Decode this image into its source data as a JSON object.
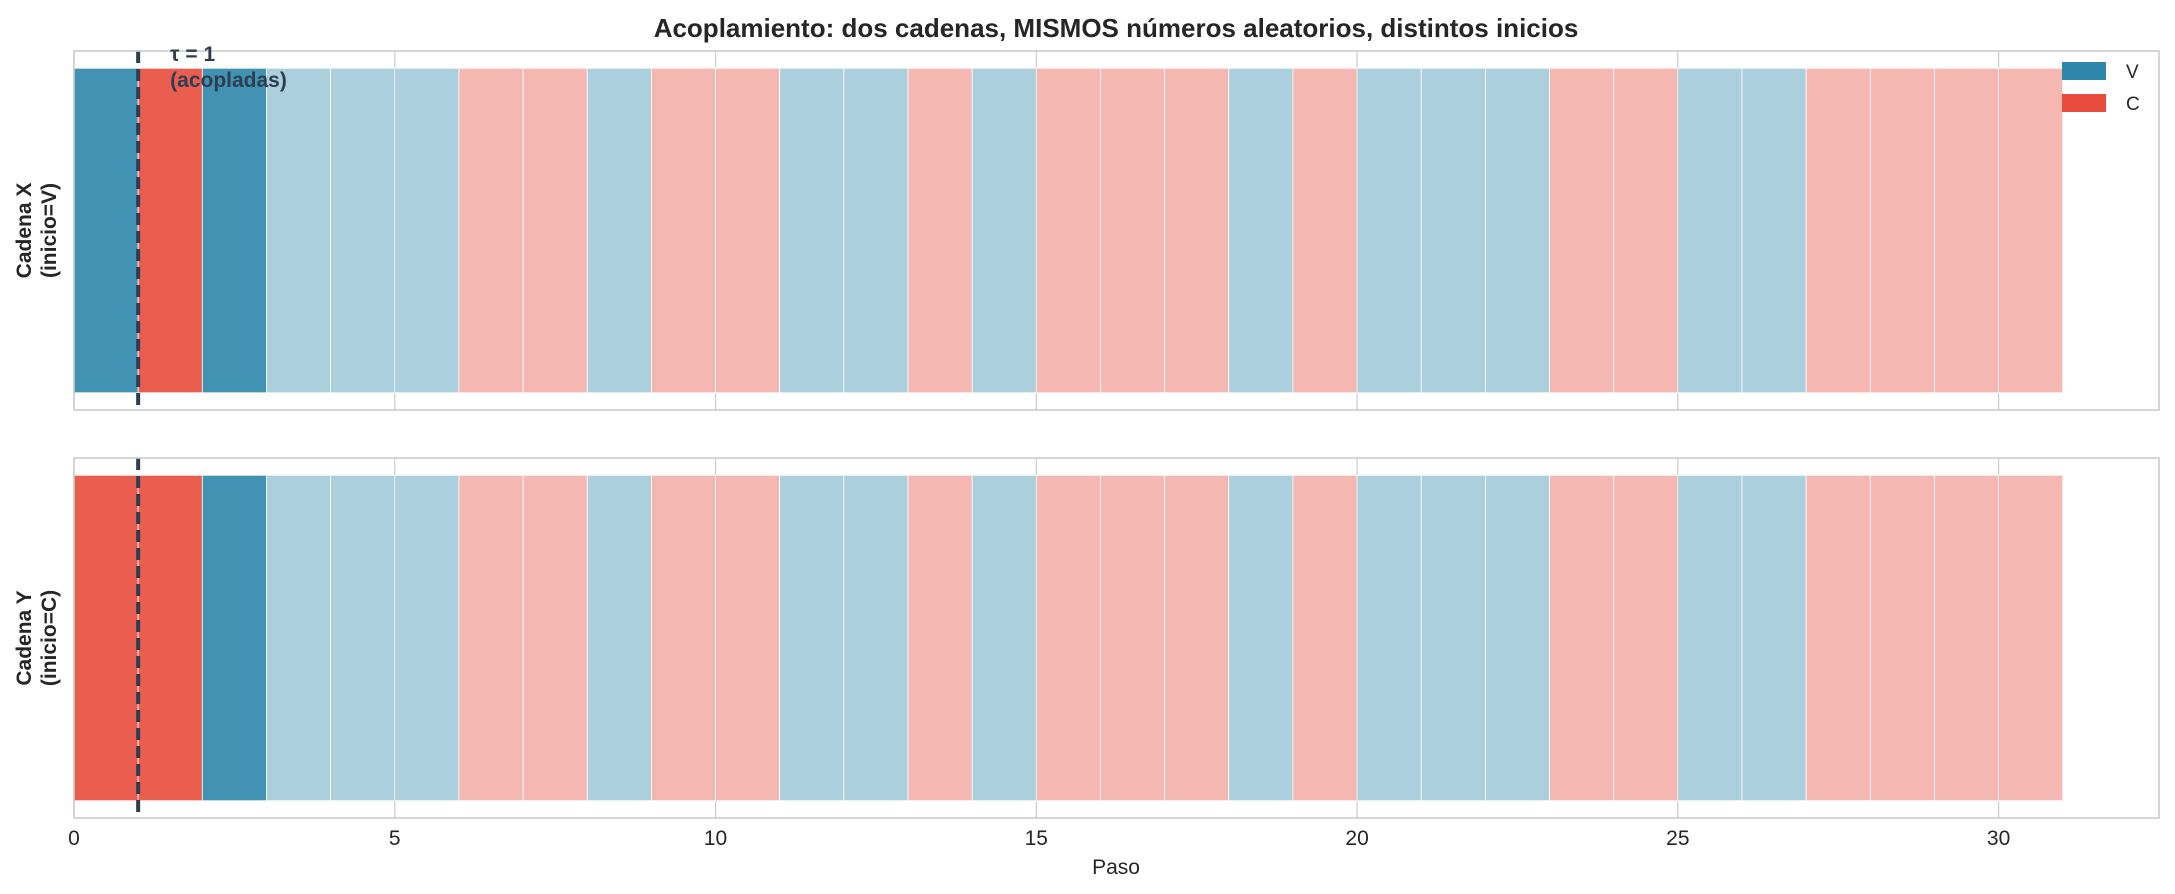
{
  "chart_data": {
    "type": "bar",
    "title": "Acoplamiento: dos cadenas, MISMOS números aleatorios, distintos inicios",
    "xlabel": "Paso",
    "xlim": [
      0,
      32.5
    ],
    "xticks": [
      0,
      5,
      10,
      15,
      20,
      25,
      30
    ],
    "grid": true,
    "legend": {
      "placement": "top-right",
      "entries": [
        {
          "label": "V",
          "color": "#2e86ab"
        },
        {
          "label": "C",
          "color": "#e74c3c"
        }
      ]
    },
    "colors": {
      "V": "#2e86ab",
      "C": "#e74c3c",
      "alpha_after_coupling": 0.4
    },
    "coupling": {
      "tau": 1,
      "label_line1": "τ = 1",
      "label_line2": "(acopladas)",
      "line_color": "#2c3e50"
    },
    "steps": [
      0,
      1,
      2,
      3,
      4,
      5,
      6,
      7,
      8,
      9,
      10,
      11,
      12,
      13,
      14,
      15,
      16,
      17,
      18,
      19,
      20,
      21,
      22,
      23,
      24,
      25,
      26,
      27,
      28,
      29,
      30
    ],
    "series": [
      {
        "name": "Cadena X",
        "ylabel_line1": "Cadena X",
        "ylabel_line2": "(inicio=V)",
        "states": [
          "V",
          "C",
          "V",
          "V",
          "V",
          "V",
          "C",
          "C",
          "V",
          "C",
          "C",
          "V",
          "V",
          "C",
          "V",
          "C",
          "C",
          "C",
          "V",
          "C",
          "V",
          "V",
          "V",
          "C",
          "C",
          "V",
          "V",
          "C",
          "C",
          "C",
          "C"
        ]
      },
      {
        "name": "Cadena Y",
        "ylabel_line1": "Cadena Y",
        "ylabel_line2": "(inicio=C)",
        "states": [
          "C",
          "C",
          "V",
          "V",
          "V",
          "V",
          "C",
          "C",
          "V",
          "C",
          "C",
          "V",
          "V",
          "C",
          "V",
          "C",
          "C",
          "C",
          "V",
          "C",
          "V",
          "V",
          "V",
          "C",
          "C",
          "V",
          "V",
          "C",
          "C",
          "C",
          "C"
        ]
      }
    ]
  }
}
